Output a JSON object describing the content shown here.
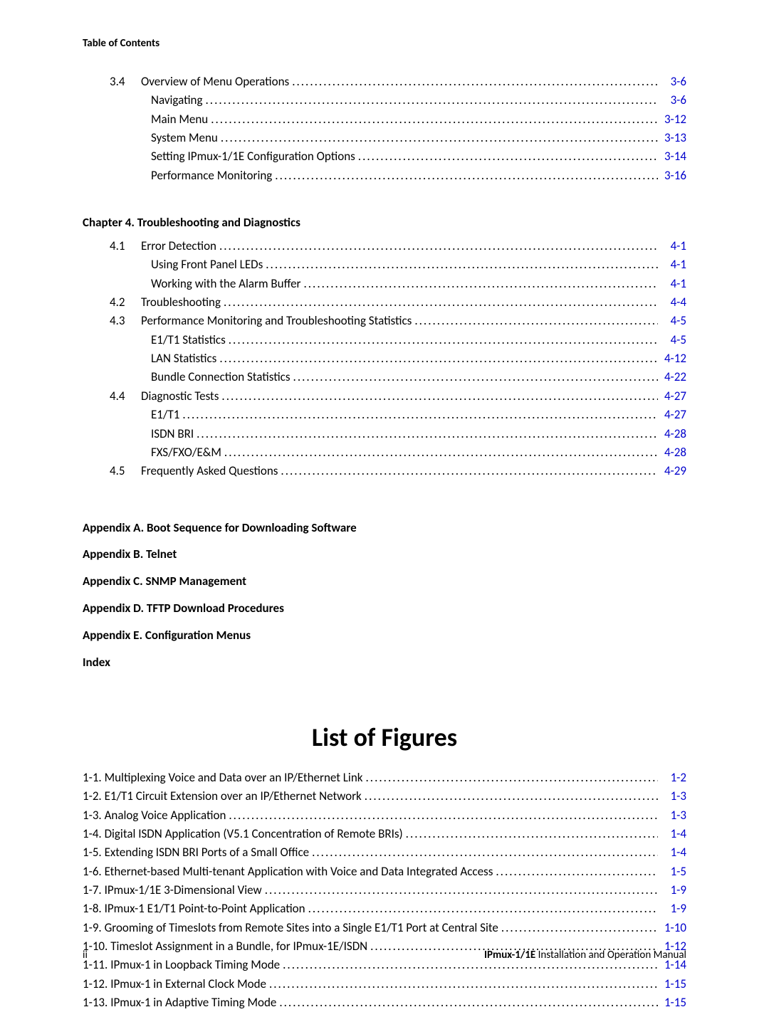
{
  "header": "Table of Contents",
  "link_color": "#0000cc",
  "text_color": "#000000",
  "background_color": "#ffffff",
  "toc_top": [
    {
      "num": "3.4",
      "title": "Overview of Menu Operations",
      "page": "3-6",
      "indent": 0
    },
    {
      "num": "",
      "title": "Navigating",
      "page": "3-6",
      "indent": 1
    },
    {
      "num": "",
      "title": "Main Menu",
      "page": "3-12",
      "indent": 1
    },
    {
      "num": "",
      "title": "System Menu",
      "page": "3-13",
      "indent": 1
    },
    {
      "num": "",
      "title": "Setting IPmux-1/1E Configuration Options",
      "page": "3-14",
      "indent": 1
    },
    {
      "num": "",
      "title": "Performance Monitoring",
      "page": "3-16",
      "indent": 1
    }
  ],
  "chapter4_title": "Chapter 4. Troubleshooting and Diagnostics",
  "toc_ch4": [
    {
      "num": "4.1",
      "title": "Error Detection",
      "page": "4-1",
      "indent": 0
    },
    {
      "num": "",
      "title": "Using Front Panel LEDs",
      "page": "4-1",
      "indent": 1
    },
    {
      "num": "",
      "title": "Working with the Alarm Buffer",
      "page": "4-1",
      "indent": 1
    },
    {
      "num": "4.2",
      "title": "Troubleshooting",
      "page": "4-4",
      "indent": 0
    },
    {
      "num": "4.3",
      "title": "Performance Monitoring and Troubleshooting Statistics",
      "page": "4-5",
      "indent": 0
    },
    {
      "num": "",
      "title": "E1/T1 Statistics",
      "page": "4-5",
      "indent": 1
    },
    {
      "num": "",
      "title": "LAN Statistics",
      "page": "4-12",
      "indent": 1
    },
    {
      "num": "",
      "title": "Bundle Connection Statistics",
      "page": "4-22",
      "indent": 1
    },
    {
      "num": "4.4",
      "title": "Diagnostic Tests",
      "page": "4-27",
      "indent": 0
    },
    {
      "num": "",
      "title": "E1/T1",
      "page": "4-27",
      "indent": 1
    },
    {
      "num": "",
      "title": "ISDN BRI",
      "page": "4-28",
      "indent": 1
    },
    {
      "num": "",
      "title": "FXS/FXO/E&M",
      "page": "4-28",
      "indent": 1
    },
    {
      "num": "4.5",
      "title": "Frequently Asked Questions",
      "page": "4-29",
      "indent": 0
    }
  ],
  "appendices": [
    "Appendix A. Boot Sequence for Downloading Software",
    "Appendix B. Telnet",
    "Appendix C. SNMP Management",
    "Appendix D. TFTP Download Procedures",
    "Appendix E. Configuration Menus",
    "Index"
  ],
  "lof_title": "List of Figures",
  "figures": [
    {
      "title": "1-1.  Multiplexing Voice and Data over an IP/Ethernet Link",
      "page": "1-2"
    },
    {
      "title": "1-2.  E1/T1 Circuit Extension over an IP/Ethernet Network",
      "page": "1-3"
    },
    {
      "title": "1-3.  Analog Voice Application",
      "page": "1-3"
    },
    {
      "title": "1-4.  Digital ISDN Application (V5.1 Concentration of Remote BRIs)",
      "page": "1-4"
    },
    {
      "title": "1-5.  Extending ISDN BRI Ports of a Small Office",
      "page": "1-4"
    },
    {
      "title": "1-6.  Ethernet-based Multi-tenant Application with Voice and Data Integrated Access",
      "page": "1-5"
    },
    {
      "title": "1-7.  IPmux-1/1E 3-Dimensional View",
      "page": "1-9"
    },
    {
      "title": "1-8.  IPmux-1 E1/T1 Point-to-Point Application",
      "page": "1-9"
    },
    {
      "title": "1-9.  Grooming of Timeslots from Remote Sites into a  Single E1/T1 Port at Central Site",
      "page": "1-10"
    },
    {
      "title": "1-10.  Timeslot Assignment in a Bundle, for IPmux-1E/ISDN",
      "page": "1-12"
    },
    {
      "title": "1-11.  IPmux-1 in Loopback Timing Mode",
      "page": "1-14"
    },
    {
      "title": "1-12.  IPmux-1 in External Clock Mode",
      "page": "1-15"
    },
    {
      "title": "1-13.  IPmux-1 in Adaptive Timing Mode",
      "page": "1-15"
    }
  ],
  "footer": {
    "page_number": "ii",
    "manual_bold": "IPmux-1/1E",
    "manual_rest": " Installation and Operation Manual"
  }
}
